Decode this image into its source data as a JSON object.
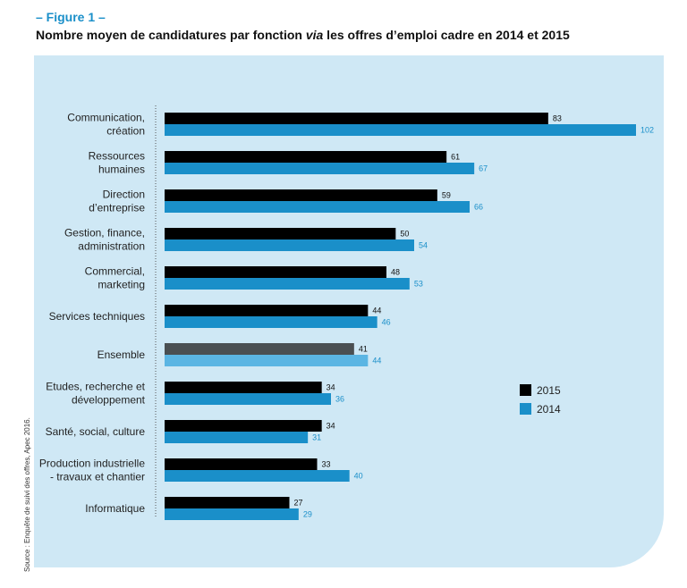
{
  "figure_label": "– Figure 1 –",
  "title_pre": "Nombre moyen de candidatures par fonction ",
  "title_italic": "via",
  "title_post": " les offres d’emploi cadre en 2014 et 2015",
  "source": "Source : Enquête de suivi des offres, Apec 2016.",
  "colors": {
    "s2015": "#000000",
    "s2014": "#1a8fc9",
    "s2015_ensemble": "#4a4f52",
    "s2014_ensemble": "#5bb5e3",
    "panel": "#cfe8f5"
  },
  "chart_data": {
    "type": "bar",
    "orientation": "horizontal",
    "title": "Nombre moyen de candidatures par fonction via les offres d’emploi cadre en 2014 et 2015",
    "categories": [
      [
        "Communication,",
        "création"
      ],
      [
        "Ressources",
        "humaines"
      ],
      [
        "Direction",
        "d’entreprise"
      ],
      [
        "Gestion, finance,",
        "administration"
      ],
      [
        "Commercial,",
        "marketing"
      ],
      [
        "Services techniques"
      ],
      [
        "Ensemble"
      ],
      [
        "Etudes, recherche et",
        "développement"
      ],
      [
        "Santé, social, culture"
      ],
      [
        "Production industrielle",
        "- travaux et chantier"
      ],
      [
        "Informatique"
      ]
    ],
    "highlight_category_index": 6,
    "series": [
      {
        "name": "2015",
        "values": [
          83,
          61,
          59,
          50,
          48,
          44,
          41,
          34,
          34,
          33,
          27
        ]
      },
      {
        "name": "2014",
        "values": [
          102,
          67,
          66,
          54,
          53,
          46,
          44,
          36,
          31,
          40,
          29
        ]
      }
    ],
    "xlim": [
      0,
      102
    ],
    "legend": {
      "position": "right",
      "entries": [
        "2015",
        "2014"
      ]
    },
    "grid": false
  }
}
